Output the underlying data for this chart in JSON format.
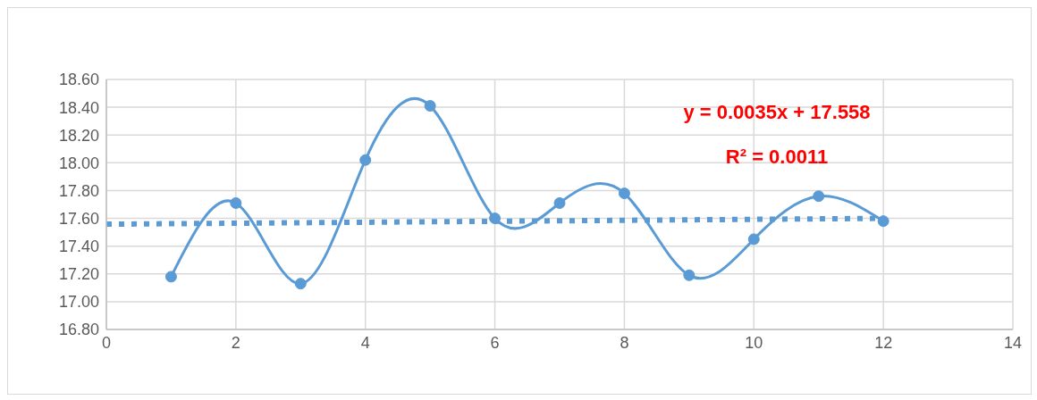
{
  "chart_data": {
    "type": "line",
    "xlim": [
      0,
      14
    ],
    "xticks": [
      0,
      2,
      4,
      6,
      8,
      10,
      12,
      14
    ],
    "ylim": [
      16.8,
      18.6
    ],
    "yticks": [
      {
        "value": 16.8,
        "label": "16.80"
      },
      {
        "value": 17,
        "label": "17.00"
      },
      {
        "value": 17.2,
        "label": "17.20"
      },
      {
        "value": 17.4,
        "label": "17.40"
      },
      {
        "value": 17.6,
        "label": "17.60"
      },
      {
        "value": 17.8,
        "label": "17.80"
      },
      {
        "value": 18,
        "label": "18.00"
      },
      {
        "value": 18.2,
        "label": "18.20"
      },
      {
        "value": 18.4,
        "label": "18.40"
      },
      {
        "value": 18.6,
        "label": "18.60"
      }
    ],
    "grid": true,
    "series": [
      {
        "type": "line",
        "color": "#5b9bd5",
        "marker": "circle",
        "line_style": "solid",
        "x": [
          1,
          2,
          3,
          4,
          5,
          6,
          7,
          8,
          9,
          10,
          11,
          12
        ],
        "values": [
          17.18,
          17.71,
          17.13,
          18.02,
          18.41,
          17.6,
          17.71,
          17.78,
          17.19,
          17.45,
          17.76,
          17.58
        ]
      },
      {
        "type": "line",
        "color": "#5b9bd5",
        "marker": "none",
        "line_style": "dotted",
        "x": [
          0,
          12
        ],
        "values": [
          17.558,
          17.6
        ]
      }
    ],
    "annotations": [
      "y = 0.0035x + 17.558",
      "R² = 0.0011"
    ]
  }
}
